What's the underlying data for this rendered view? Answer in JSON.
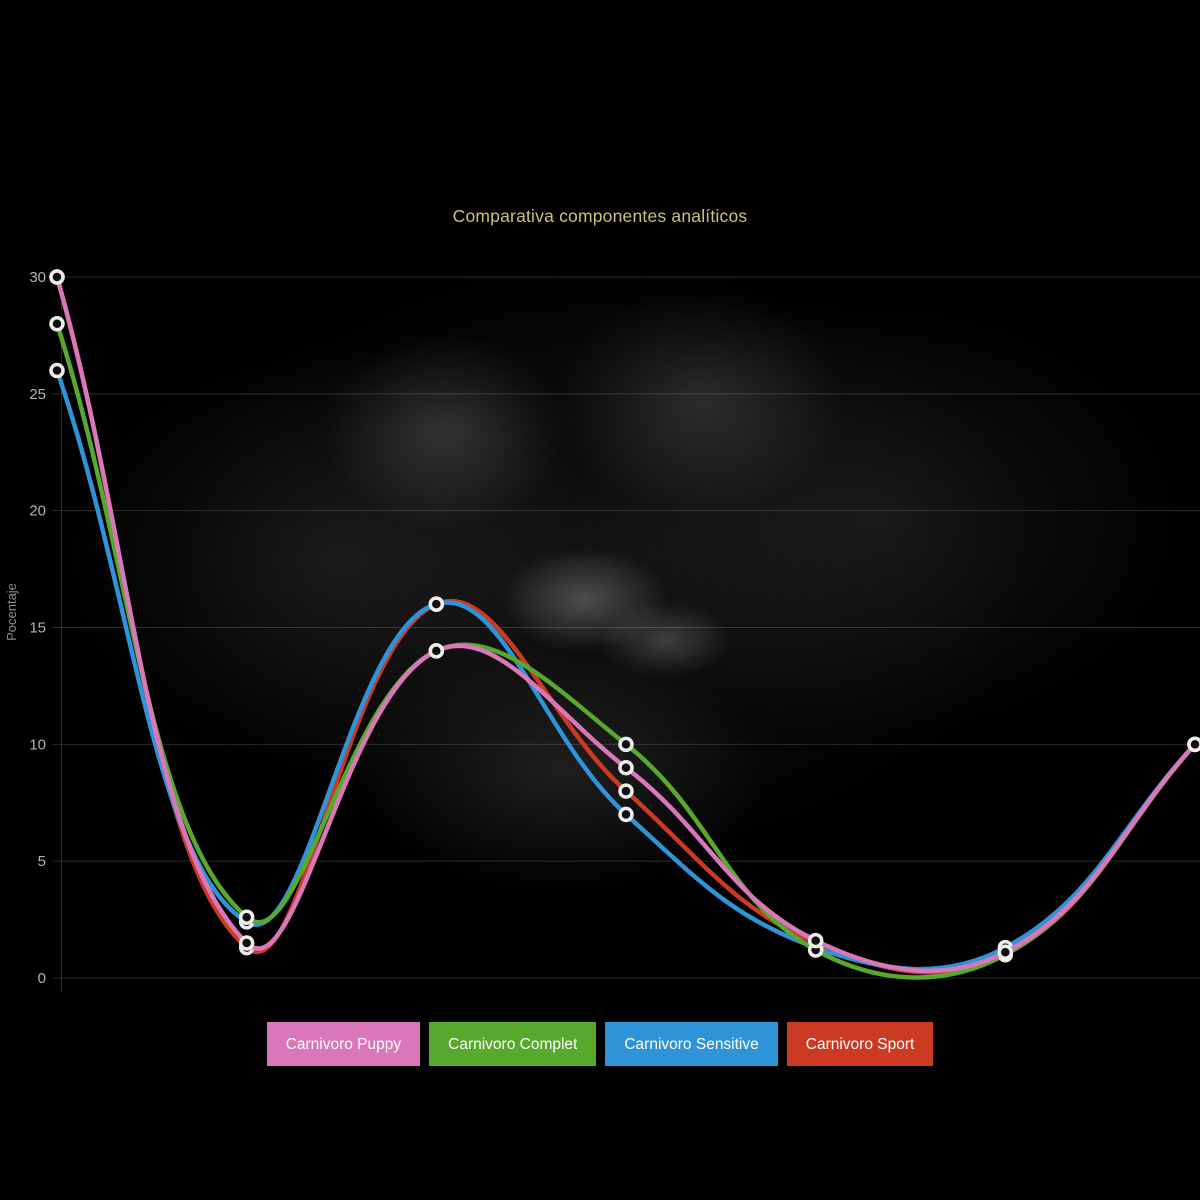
{
  "chart_data": {
    "type": "line",
    "title": "Comparativa componentes analíticos",
    "title_color": "#c9c377",
    "ylabel": "Pocentaje",
    "ylim": [
      0,
      30
    ],
    "yticks": [
      0,
      5,
      10,
      15,
      20,
      25,
      30
    ],
    "x_labels": [
      "",
      "",
      "",
      "",
      "",
      "",
      ""
    ],
    "grid": true,
    "legend_position": "bottom",
    "line_tension": 0.4,
    "series": [
      {
        "name": "Carnivoro Puppy",
        "color": "#da76ba",
        "values": [
          30,
          1.5,
          14,
          9,
          1.6,
          1.1,
          10
        ]
      },
      {
        "name": "Carnivoro Complet",
        "color": "#58a82e",
        "values": [
          28,
          2.6,
          14,
          10,
          1.2,
          1.0,
          10
        ]
      },
      {
        "name": "Carnivoro Sensitive",
        "color": "#2f93d8",
        "values": [
          26,
          2.4,
          16,
          7,
          1.3,
          1.3,
          10
        ]
      },
      {
        "name": "Carnivoro Sport",
        "color": "#cb3b24",
        "values": [
          30,
          1.3,
          16,
          8,
          1.5,
          1.0,
          10
        ]
      }
    ],
    "point_style": {
      "fill": "#0e0e0e",
      "stroke": "#ededed"
    },
    "axis_text_color": "#b3b3b3",
    "axis_title_color": "#8f8f8f",
    "grid_color": "rgba(255,255,255,0.16)"
  }
}
